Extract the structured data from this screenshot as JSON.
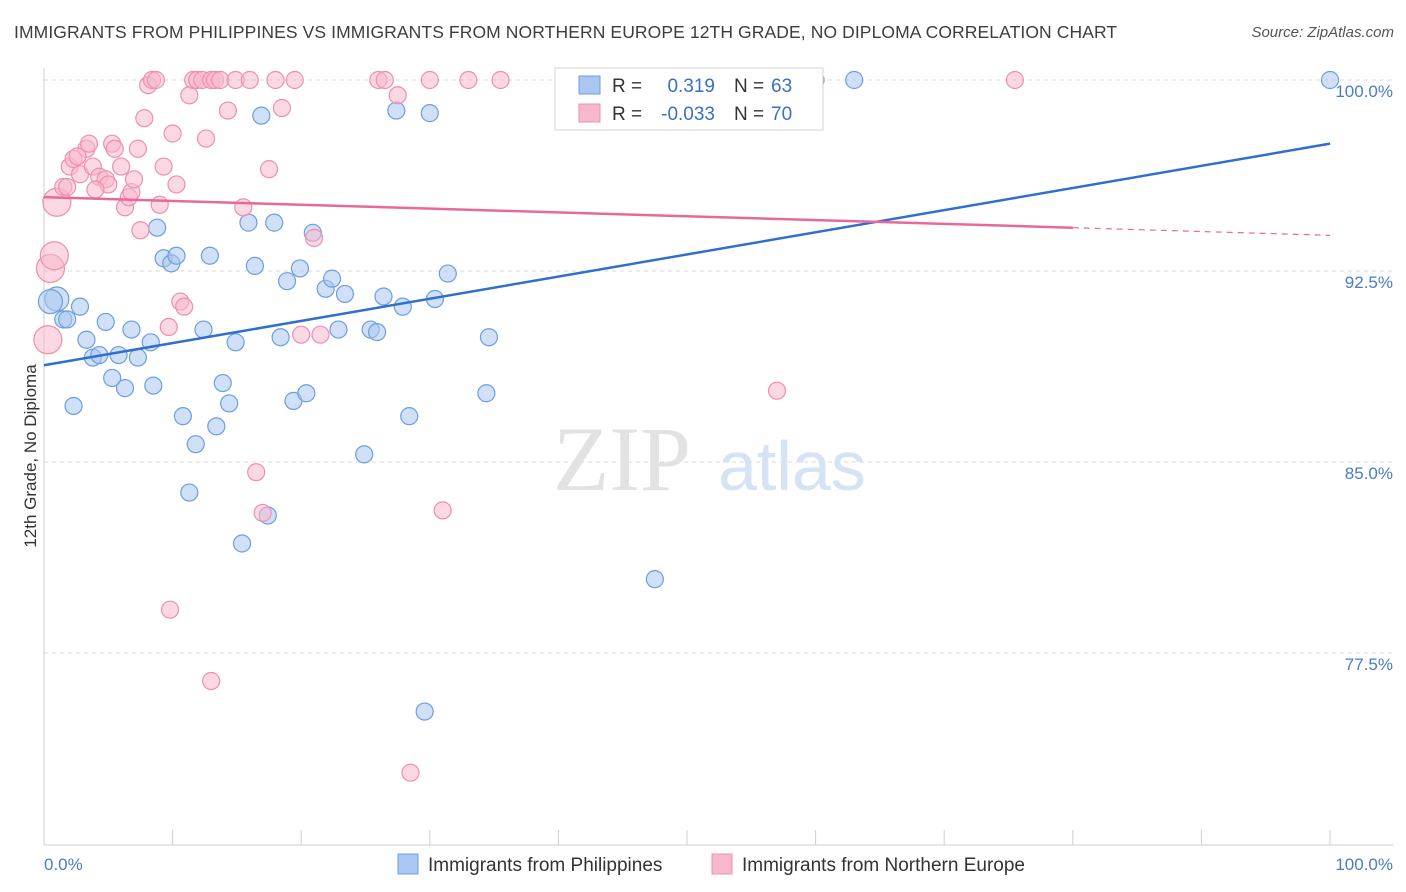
{
  "title": "IMMIGRANTS FROM PHILIPPINES VS IMMIGRANTS FROM NORTHERN EUROPE 12TH GRADE, NO DIPLOMA CORRELATION CHART",
  "source": "Source: ZipAtlas.com",
  "watermark": {
    "zip": "ZIP",
    "atlas": "atlas"
  },
  "stats": [
    {
      "r_label": "R =",
      "r_value": "0.319",
      "n_label": "N =",
      "n_value": "63"
    },
    {
      "r_label": "R =",
      "r_value": "-0.033",
      "n_label": "N =",
      "n_value": "70"
    }
  ],
  "legend": [
    "Immigrants from Philippines",
    "Immigrants from Northern Europe"
  ],
  "colors": {
    "blue_fill": "#a9c7f0",
    "blue_stroke": "#6d9ee0",
    "blue_line": "#2f6fd0",
    "pink_fill": "#f7b8cc",
    "pink_stroke": "#ee8fae",
    "pink_line": "#e8689a",
    "grid": "#d9d9d9",
    "tick_text": "#4a7cc8"
  },
  "chart_data": {
    "type": "scatter",
    "title": "IMMIGRANTS FROM PHILIPPINES VS IMMIGRANTS FROM NORTHERN EUROPE 12TH GRADE, NO DIPLOMA CORRELATION CHART",
    "xlabel": "",
    "ylabel": "12th Grade, No Diploma",
    "xlim": [
      0,
      100
    ],
    "ylim": [
      70.5,
      101.5
    ],
    "x_tick_labels": [
      {
        "value": 0,
        "label": "0.0%"
      },
      {
        "value": 100,
        "label": "100.0%"
      }
    ],
    "y_ticks": [
      {
        "value": 100,
        "label": "100.0%"
      },
      {
        "value": 92.5,
        "label": "92.5%"
      },
      {
        "value": 85,
        "label": "85.0%"
      },
      {
        "value": 77.5,
        "label": "77.5%"
      }
    ],
    "grid": true,
    "legend_position": "bottom",
    "series": [
      {
        "name": "Immigrants from Philippines",
        "color": "blue",
        "trend": {
          "x": [
            0,
            100
          ],
          "y": [
            88.8,
            97.5
          ],
          "dashed_from": null
        },
        "points": [
          [
            1,
            91.4
          ],
          [
            1.5,
            90.6
          ],
          [
            1.8,
            90.6
          ],
          [
            2.3,
            87.2
          ],
          [
            2.8,
            91.1
          ],
          [
            3.3,
            89.8
          ],
          [
            3.8,
            89.1
          ],
          [
            4.3,
            89.2
          ],
          [
            4.8,
            90.5
          ],
          [
            5.3,
            88.3
          ],
          [
            5.8,
            89.2
          ],
          [
            6.3,
            87.9
          ],
          [
            6.8,
            90.2
          ],
          [
            7.3,
            89.1
          ],
          [
            8.3,
            89.7
          ],
          [
            8.5,
            88.0
          ],
          [
            8.8,
            94.2
          ],
          [
            9.3,
            93.0
          ],
          [
            9.9,
            92.8
          ],
          [
            10.3,
            93.1
          ],
          [
            10.8,
            86.8
          ],
          [
            11.3,
            83.8
          ],
          [
            11.8,
            85.7
          ],
          [
            12.4,
            90.2
          ],
          [
            12.9,
            93.1
          ],
          [
            13.4,
            86.4
          ],
          [
            13.9,
            88.1
          ],
          [
            14.4,
            87.3
          ],
          [
            14.9,
            89.7
          ],
          [
            15.4,
            81.8
          ],
          [
            15.9,
            94.4
          ],
          [
            16.4,
            92.7
          ],
          [
            16.9,
            98.6
          ],
          [
            17.4,
            82.9
          ],
          [
            17.9,
            94.4
          ],
          [
            18.4,
            89.9
          ],
          [
            18.9,
            92.1
          ],
          [
            19.4,
            87.4
          ],
          [
            19.9,
            92.6
          ],
          [
            20.4,
            87.7
          ],
          [
            20.9,
            94.0
          ],
          [
            21.9,
            91.8
          ],
          [
            22.4,
            92.2
          ],
          [
            22.9,
            90.2
          ],
          [
            23.4,
            91.6
          ],
          [
            24.9,
            85.3
          ],
          [
            25.4,
            90.2
          ],
          [
            25.9,
            90.1
          ],
          [
            26.4,
            91.5
          ],
          [
            27.4,
            98.8
          ],
          [
            27.9,
            91.1
          ],
          [
            28.4,
            86.8
          ],
          [
            29.6,
            75.2
          ],
          [
            30.0,
            98.7
          ],
          [
            30.4,
            91.4
          ],
          [
            31.4,
            92.4
          ],
          [
            34.4,
            87.7
          ],
          [
            34.6,
            89.9
          ],
          [
            47.5,
            80.4
          ],
          [
            60.0,
            100.0
          ],
          [
            63.0,
            100.0
          ],
          [
            100.0,
            100.0
          ],
          [
            0.5,
            91.3
          ]
        ]
      },
      {
        "name": "Immigrants from Northern Europe",
        "color": "pink",
        "trend": {
          "x": [
            0,
            80,
            100
          ],
          "y": [
            95.4,
            94.2,
            93.9
          ],
          "dashed_from": 80
        },
        "points": [
          [
            0.3,
            89.8
          ],
          [
            0.5,
            92.6
          ],
          [
            0.8,
            93.1
          ],
          [
            1.0,
            95.2
          ],
          [
            1.5,
            95.8
          ],
          [
            1.8,
            95.8
          ],
          [
            2.0,
            96.6
          ],
          [
            2.3,
            96.9
          ],
          [
            2.8,
            96.3
          ],
          [
            3.3,
            97.3
          ],
          [
            3.5,
            97.5
          ],
          [
            3.8,
            96.6
          ],
          [
            4.3,
            96.2
          ],
          [
            4.8,
            96.1
          ],
          [
            5.0,
            95.9
          ],
          [
            5.3,
            97.5
          ],
          [
            5.5,
            97.3
          ],
          [
            6.0,
            96.6
          ],
          [
            6.3,
            95.0
          ],
          [
            6.6,
            95.4
          ],
          [
            6.8,
            95.6
          ],
          [
            7.0,
            96.1
          ],
          [
            7.3,
            97.3
          ],
          [
            7.8,
            98.5
          ],
          [
            8.1,
            99.8
          ],
          [
            8.4,
            100.0
          ],
          [
            8.7,
            100.0
          ],
          [
            9.0,
            95.1
          ],
          [
            9.3,
            96.6
          ],
          [
            9.7,
            90.3
          ],
          [
            10.0,
            97.9
          ],
          [
            10.3,
            95.9
          ],
          [
            10.6,
            91.3
          ],
          [
            10.9,
            91.1
          ],
          [
            11.3,
            99.4
          ],
          [
            11.6,
            100.0
          ],
          [
            11.9,
            100.0
          ],
          [
            12.3,
            100.0
          ],
          [
            12.6,
            97.7
          ],
          [
            13.0,
            100.0
          ],
          [
            13.3,
            100.0
          ],
          [
            13.7,
            100.0
          ],
          [
            14.3,
            98.8
          ],
          [
            14.9,
            100.0
          ],
          [
            15.5,
            95.0
          ],
          [
            16.0,
            100.0
          ],
          [
            16.5,
            84.6
          ],
          [
            17.0,
            83.0
          ],
          [
            17.5,
            96.5
          ],
          [
            18.0,
            100.0
          ],
          [
            18.5,
            98.9
          ],
          [
            19.5,
            100.0
          ],
          [
            20.0,
            90.0
          ],
          [
            21.0,
            93.8
          ],
          [
            21.5,
            90.0
          ],
          [
            26.0,
            100.0
          ],
          [
            26.5,
            100.0
          ],
          [
            27.5,
            99.4
          ],
          [
            30.0,
            100.0
          ],
          [
            31.0,
            83.1
          ],
          [
            33.0,
            100.0
          ],
          [
            35.5,
            100.0
          ],
          [
            57.0,
            87.8
          ],
          [
            75.5,
            100.0
          ],
          [
            9.8,
            79.2
          ],
          [
            13.0,
            76.4
          ],
          [
            28.5,
            72.8
          ],
          [
            2.6,
            97.0
          ],
          [
            4.0,
            95.7
          ],
          [
            7.5,
            94.1
          ]
        ]
      }
    ]
  }
}
